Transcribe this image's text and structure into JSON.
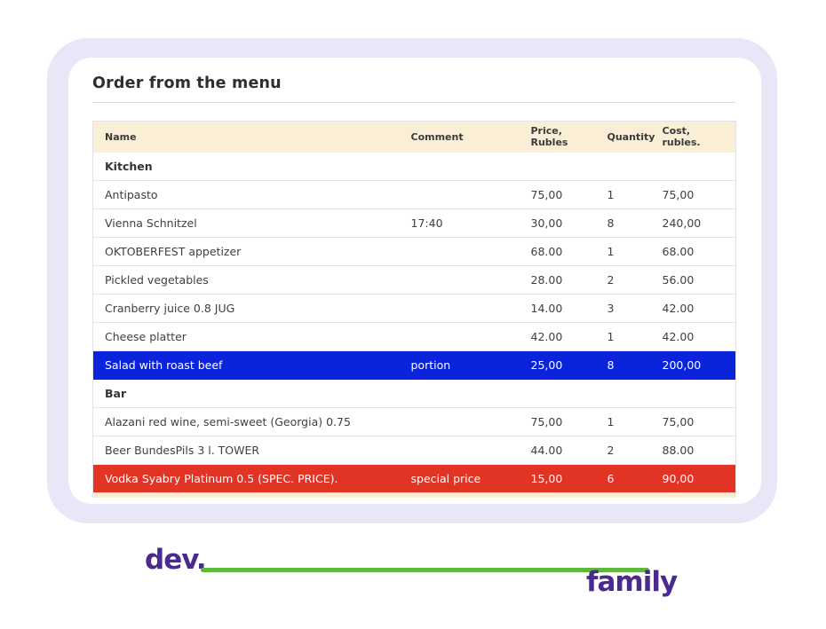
{
  "card": {
    "title": "Order from the menu"
  },
  "table": {
    "headers": [
      "Name",
      "Comment",
      "Price, Rubles",
      "Quantity",
      "Cost, rubles."
    ],
    "rows": [
      {
        "type": "section",
        "name": "Kitchen",
        "comment": "",
        "price": "",
        "quantity": "",
        "cost": "",
        "highlight": ""
      },
      {
        "type": "item",
        "name": "Antipasto",
        "comment": "",
        "price": "75,00",
        "quantity": "1",
        "cost": "75,00",
        "highlight": ""
      },
      {
        "type": "item",
        "name": "Vienna Schnitzel",
        "comment": "17:40",
        "price": "30,00",
        "quantity": "8",
        "cost": "240,00",
        "highlight": ""
      },
      {
        "type": "item",
        "name": "OKTOBERFEST appetizer",
        "comment": "",
        "price": "68.00",
        "quantity": "1",
        "cost": "68.00",
        "highlight": ""
      },
      {
        "type": "item",
        "name": "Pickled vegetables",
        "comment": "",
        "price": "28.00",
        "quantity": "2",
        "cost": "56.00",
        "highlight": ""
      },
      {
        "type": "item",
        "name": "Cranberry juice 0.8 JUG",
        "comment": "",
        "price": "14.00",
        "quantity": "3",
        "cost": "42.00",
        "highlight": ""
      },
      {
        "type": "item",
        "name": "Cheese platter",
        "comment": "",
        "price": "42.00",
        "quantity": "1",
        "cost": "42.00",
        "highlight": ""
      },
      {
        "type": "item",
        "name": "Salad with roast beef",
        "comment": "portion",
        "price": "25,00",
        "quantity": "8",
        "cost": "200,00",
        "highlight": "blue"
      },
      {
        "type": "section",
        "name": "Bar",
        "comment": "",
        "price": "",
        "quantity": "",
        "cost": "",
        "highlight": ""
      },
      {
        "type": "item",
        "name": "Alazani red wine, semi-sweet (Georgia) 0.75",
        "comment": "",
        "price": "75,00",
        "quantity": "1",
        "cost": "75,00",
        "highlight": ""
      },
      {
        "type": "item",
        "name": "Beer BundesPils 3 l. TOWER",
        "comment": "",
        "price": "44.00",
        "quantity": "2",
        "cost": "88.00",
        "highlight": ""
      },
      {
        "type": "item",
        "name": "Vodka Syabry Platinum 0.5 (SPEC. PRICE).",
        "comment": "special price",
        "price": "15,00",
        "quantity": "6",
        "cost": "90,00",
        "highlight": "red"
      }
    ]
  },
  "logo": {
    "dev": "dev.",
    "family": "family"
  },
  "colors": {
    "highlight_blue": "#0b23da",
    "highlight_red": "#e23425",
    "header_bg": "#fbeed6",
    "backdrop": "#e9e6f7",
    "logo_purple": "#4a2a8e",
    "logo_green": "#5db83b"
  }
}
